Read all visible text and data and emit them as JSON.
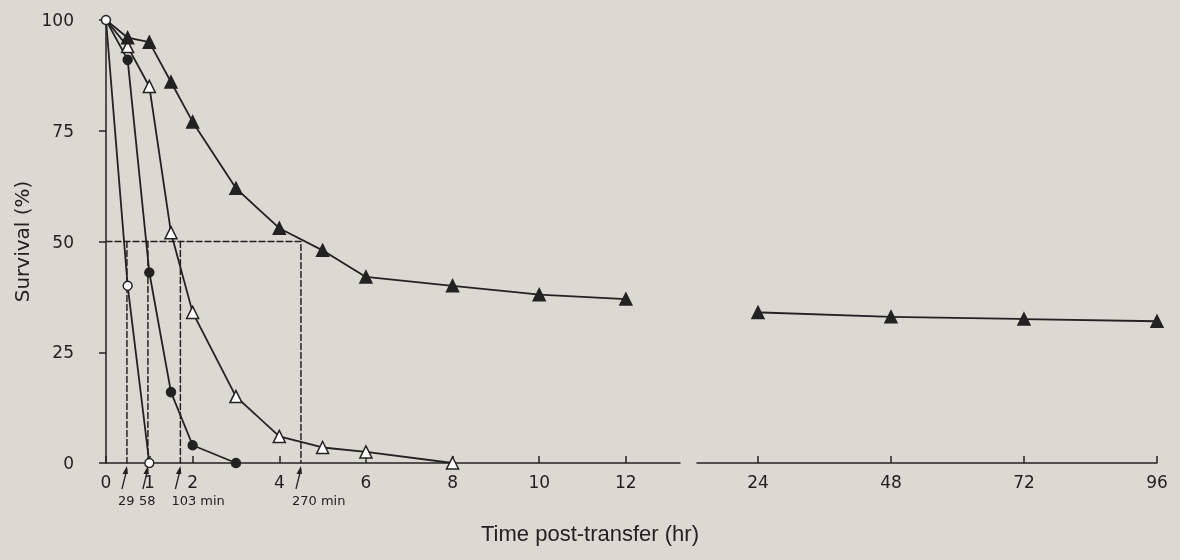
{
  "chart_data": [
    {
      "type": "line",
      "ylabel": "Survival (%)",
      "xlabel": "Time post-transfer (hr)",
      "xlim": [
        0,
        13.25
      ],
      "xticks": [
        0,
        1,
        2,
        4,
        6,
        8,
        10,
        12
      ],
      "ylim": [
        0,
        100
      ],
      "yticks": [
        0,
        25,
        50,
        75,
        100
      ],
      "grid": false,
      "series": [
        {
          "color": "#222222",
          "marker": "circle",
          "colors": [
            "#ffffff",
            "#ffffff",
            "#ffffff"
          ],
          "x": [
            0,
            0.5,
            1
          ],
          "values": [
            100,
            40,
            0
          ]
        },
        {
          "color": "#222222",
          "marker": "circle",
          "x": [
            0,
            0.5,
            1,
            1.5,
            2,
            3
          ],
          "values": [
            100,
            91,
            43,
            16,
            4,
            0
          ]
        },
        {
          "color": "#222222",
          "marker": "triangle",
          "colors": [
            "#ffffff",
            "#ffffff",
            "#ffffff",
            "#ffffff",
            "#ffffff",
            "#ffffff",
            "#ffffff",
            "#ffffff",
            "#ffffff",
            "#ffffff"
          ],
          "x": [
            0,
            0.5,
            1,
            1.5,
            2,
            3,
            4,
            5,
            6,
            8
          ],
          "values": [
            100,
            94,
            85,
            52,
            34,
            15,
            6,
            3.5,
            2.5,
            0
          ]
        },
        {
          "color": "#222222",
          "marker": "triangle",
          "x": [
            0,
            0.5,
            1,
            1.5,
            2,
            3,
            4,
            5,
            6,
            8,
            10,
            12
          ],
          "values": [
            100,
            96,
            95,
            86,
            77,
            62,
            53,
            48,
            42,
            40,
            38,
            37
          ]
        },
        {
          "color": "#222222",
          "marker": "none",
          "line_style": "dashed",
          "x": [
            0,
            4.5,
            4.5
          ],
          "values": [
            50,
            50,
            0
          ]
        },
        {
          "color": "#222222",
          "marker": "none",
          "line_style": "dashed",
          "x": [
            0.483,
            0.483
          ],
          "values": [
            50,
            0
          ]
        },
        {
          "color": "#222222",
          "marker": "none",
          "line_style": "dashed",
          "x": [
            0.967,
            0.967
          ],
          "values": [
            50,
            0
          ]
        },
        {
          "color": "#222222",
          "marker": "none",
          "line_style": "dashed",
          "x": [
            1.717,
            1.717
          ],
          "values": [
            50,
            0
          ]
        }
      ],
      "annotations": [
        {
          "text": "29",
          "x": 0.483,
          "y": 0
        },
        {
          "text": "58",
          "x": 0.967,
          "y": 0
        },
        {
          "text": "103 min",
          "x": 1.717,
          "y": 0
        },
        {
          "text": "270 min",
          "x": 4.5,
          "y": 0
        }
      ]
    },
    {
      "type": "line",
      "xlim": [
        13,
        96
      ],
      "xticks": [
        24,
        48,
        72,
        96
      ],
      "ylim": [
        0,
        100
      ],
      "tick_labels": "x",
      "grid": false,
      "series": [
        {
          "color": "#222222",
          "marker": "triangle",
          "x": [
            24,
            48,
            72,
            96
          ],
          "values": [
            34,
            33,
            32.5,
            32
          ]
        }
      ]
    }
  ]
}
